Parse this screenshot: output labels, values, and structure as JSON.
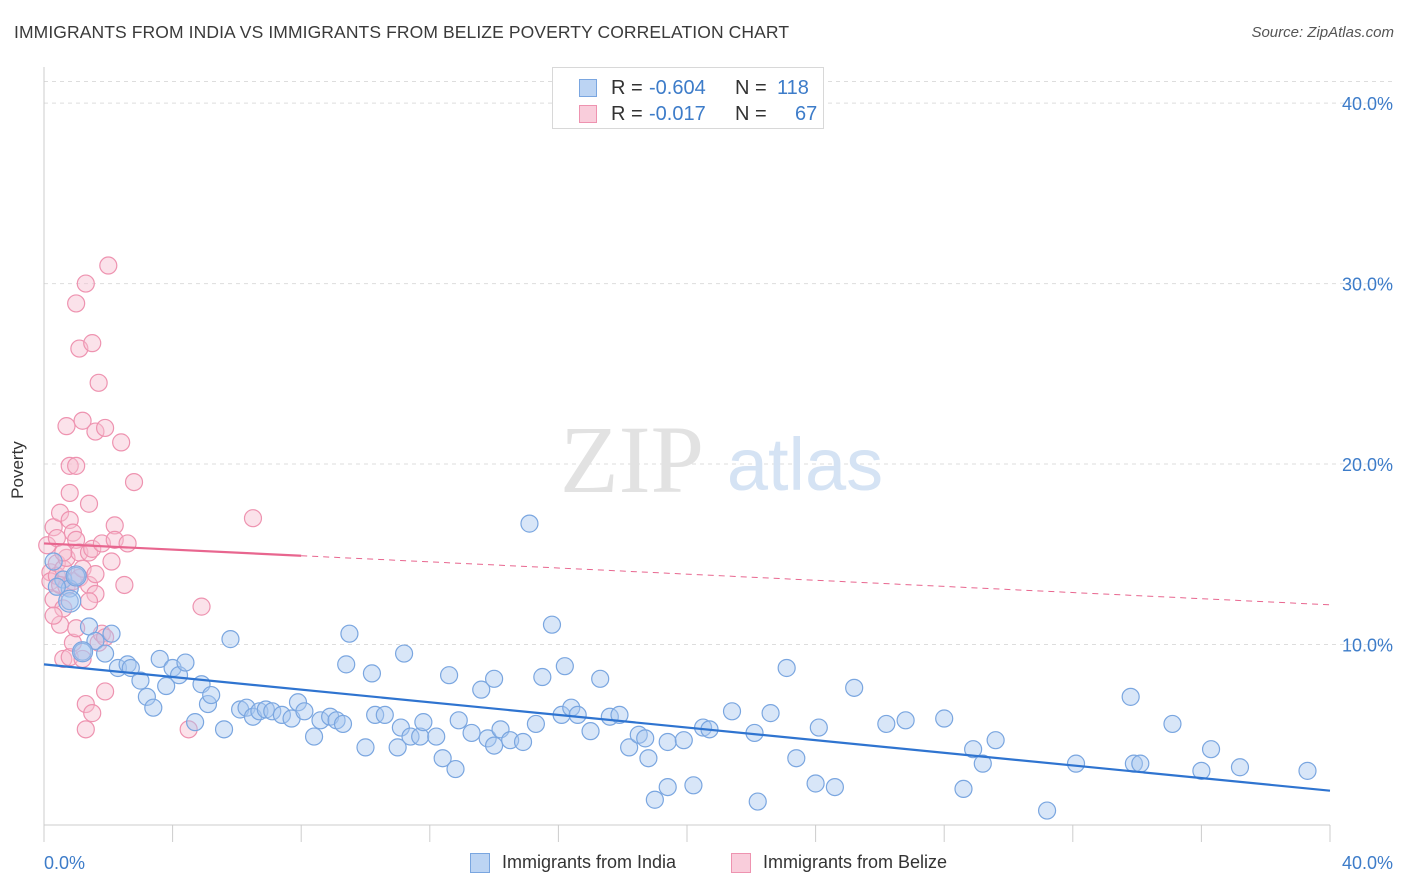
{
  "header": {
    "title": "IMMIGRANTS FROM INDIA VS IMMIGRANTS FROM BELIZE POVERTY CORRELATION CHART",
    "source": "Source: ZipAtlas.com"
  },
  "watermark": {
    "zip": "ZIP",
    "atlas": "atlas"
  },
  "legend": {
    "rows": [
      {
        "r_label": "R =",
        "r_value": "-0.604",
        "n_label": "N =",
        "n_value": "118"
      },
      {
        "r_label": "R =",
        "r_value": "-0.017",
        "n_label": "N =",
        "n_value": "67"
      }
    ]
  },
  "bottom_legend": {
    "india": "Immigrants from India",
    "belize": "Immigrants from Belize"
  },
  "colors": {
    "india_fill": "#a9c8f0",
    "india_stroke": "#7aa6e0",
    "india_line": "#2f74d0",
    "belize_fill": "#f6bfd0",
    "belize_stroke": "#ee93b0",
    "belize_line": "#e8668f",
    "tick_text": "#3d7cc9",
    "grid": "#dddddd"
  },
  "chart_data": {
    "type": "scatter",
    "title": "IMMIGRANTS FROM INDIA VS IMMIGRANTS FROM BELIZE POVERTY CORRELATION CHART",
    "ylabel": "Poverty",
    "xlabel": "",
    "xlim": [
      0,
      40
    ],
    "ylim": [
      0,
      42
    ],
    "x_tick_labels": [
      "0.0%",
      "40.0%"
    ],
    "y_ticks": [
      10,
      20,
      30,
      40
    ],
    "y_tick_labels": [
      "10.0%",
      "20.0%",
      "30.0%",
      "40.0%"
    ],
    "grid": "horizontal dashed",
    "legend_placement": "top-center",
    "series": [
      {
        "name": "Immigrants from India",
        "r": -0.604,
        "n": 118,
        "trend": {
          "x": [
            0,
            40
          ],
          "y": [
            8.9,
            1.9
          ],
          "style": "solid"
        },
        "points": [
          [
            0.3,
            14.6
          ],
          [
            0.6,
            13.6
          ],
          [
            0.8,
            13.1
          ],
          [
            0.8,
            12.4
          ],
          [
            1.0,
            13.8
          ],
          [
            1.2,
            9.6
          ],
          [
            1.4,
            11.0
          ],
          [
            1.6,
            10.2
          ],
          [
            1.9,
            9.5
          ],
          [
            2.1,
            10.6
          ],
          [
            2.3,
            8.7
          ],
          [
            2.6,
            8.9
          ],
          [
            2.7,
            8.7
          ],
          [
            3.0,
            8.0
          ],
          [
            3.2,
            7.1
          ],
          [
            3.4,
            6.5
          ],
          [
            3.6,
            9.2
          ],
          [
            3.8,
            7.7
          ],
          [
            4.0,
            8.7
          ],
          [
            4.2,
            8.3
          ],
          [
            4.4,
            9.0
          ],
          [
            4.7,
            5.7
          ],
          [
            4.9,
            7.8
          ],
          [
            5.1,
            6.7
          ],
          [
            5.2,
            7.2
          ],
          [
            5.6,
            5.3
          ],
          [
            5.8,
            10.3
          ],
          [
            6.1,
            6.4
          ],
          [
            6.3,
            6.5
          ],
          [
            6.5,
            6.0
          ],
          [
            6.7,
            6.3
          ],
          [
            6.9,
            6.4
          ],
          [
            7.1,
            6.3
          ],
          [
            7.4,
            6.1
          ],
          [
            7.7,
            5.9
          ],
          [
            7.9,
            6.8
          ],
          [
            8.1,
            6.3
          ],
          [
            8.4,
            4.9
          ],
          [
            8.6,
            5.8
          ],
          [
            8.9,
            6.0
          ],
          [
            9.1,
            5.8
          ],
          [
            9.3,
            5.6
          ],
          [
            9.4,
            8.9
          ],
          [
            9.5,
            10.6
          ],
          [
            10.0,
            4.3
          ],
          [
            10.2,
            8.4
          ],
          [
            10.3,
            6.1
          ],
          [
            10.6,
            6.1
          ],
          [
            11.0,
            4.3
          ],
          [
            11.1,
            5.4
          ],
          [
            11.2,
            9.5
          ],
          [
            11.4,
            4.9
          ],
          [
            11.7,
            4.9
          ],
          [
            11.8,
            5.7
          ],
          [
            12.2,
            4.9
          ],
          [
            12.4,
            3.7
          ],
          [
            12.6,
            8.3
          ],
          [
            12.8,
            3.1
          ],
          [
            12.9,
            5.8
          ],
          [
            13.3,
            5.1
          ],
          [
            13.6,
            7.5
          ],
          [
            13.8,
            4.8
          ],
          [
            14.0,
            4.4
          ],
          [
            14.0,
            8.1
          ],
          [
            14.2,
            5.3
          ],
          [
            14.5,
            4.7
          ],
          [
            14.9,
            4.6
          ],
          [
            15.1,
            16.7
          ],
          [
            15.3,
            5.6
          ],
          [
            15.5,
            8.2
          ],
          [
            15.8,
            11.1
          ],
          [
            16.1,
            6.1
          ],
          [
            16.2,
            8.8
          ],
          [
            16.4,
            6.5
          ],
          [
            16.6,
            6.1
          ],
          [
            17.0,
            5.2
          ],
          [
            17.3,
            8.1
          ],
          [
            17.6,
            6.0
          ],
          [
            17.9,
            6.1
          ],
          [
            18.2,
            4.3
          ],
          [
            18.5,
            5.0
          ],
          [
            18.7,
            4.8
          ],
          [
            18.8,
            3.7
          ],
          [
            19.0,
            1.4
          ],
          [
            19.4,
            4.6
          ],
          [
            19.4,
            2.1
          ],
          [
            19.9,
            4.7
          ],
          [
            20.2,
            2.2
          ],
          [
            20.5,
            5.4
          ],
          [
            20.7,
            5.3
          ],
          [
            21.4,
            6.3
          ],
          [
            22.1,
            5.1
          ],
          [
            22.2,
            1.3
          ],
          [
            22.6,
            6.2
          ],
          [
            23.1,
            8.7
          ],
          [
            23.4,
            3.7
          ],
          [
            24.0,
            2.3
          ],
          [
            24.1,
            5.4
          ],
          [
            24.6,
            2.1
          ],
          [
            25.2,
            7.6
          ],
          [
            26.2,
            5.6
          ],
          [
            26.8,
            5.8
          ],
          [
            28.0,
            5.9
          ],
          [
            28.6,
            2.0
          ],
          [
            28.9,
            4.2
          ],
          [
            29.2,
            3.4
          ],
          [
            29.6,
            4.7
          ],
          [
            31.2,
            0.8
          ],
          [
            32.1,
            3.4
          ],
          [
            33.8,
            7.1
          ],
          [
            33.9,
            3.4
          ],
          [
            34.1,
            3.4
          ],
          [
            35.1,
            5.6
          ],
          [
            36.0,
            3.0
          ],
          [
            36.3,
            4.2
          ],
          [
            37.2,
            3.2
          ],
          [
            39.3,
            3.0
          ],
          [
            0.4,
            13.2
          ]
        ]
      },
      {
        "name": "Immigrants from Belize",
        "r": -0.017,
        "n": 67,
        "trend": {
          "x": [
            0,
            40
          ],
          "y": [
            15.6,
            12.2
          ],
          "solid_until_x": 8.0
        },
        "points": [
          [
            0.1,
            15.5
          ],
          [
            0.2,
            14.0
          ],
          [
            0.2,
            13.5
          ],
          [
            0.3,
            16.5
          ],
          [
            0.3,
            12.5
          ],
          [
            0.4,
            15.9
          ],
          [
            0.4,
            14.5
          ],
          [
            0.4,
            13.8
          ],
          [
            0.5,
            17.3
          ],
          [
            0.5,
            11.1
          ],
          [
            0.5,
            13.3
          ],
          [
            0.6,
            14.2
          ],
          [
            0.6,
            12.0
          ],
          [
            0.6,
            9.2
          ],
          [
            0.7,
            22.1
          ],
          [
            0.7,
            14.8
          ],
          [
            0.7,
            13.2
          ],
          [
            0.8,
            18.4
          ],
          [
            0.8,
            16.9
          ],
          [
            0.8,
            9.3
          ],
          [
            0.8,
            19.9
          ],
          [
            0.9,
            16.2
          ],
          [
            0.9,
            13.5
          ],
          [
            0.9,
            10.1
          ],
          [
            1.0,
            19.9
          ],
          [
            1.0,
            15.8
          ],
          [
            1.0,
            10.9
          ],
          [
            1.0,
            28.9
          ],
          [
            1.1,
            15.1
          ],
          [
            1.1,
            26.4
          ],
          [
            1.1,
            13.7
          ],
          [
            1.2,
            22.4
          ],
          [
            1.2,
            14.2
          ],
          [
            1.3,
            6.7
          ],
          [
            1.3,
            5.3
          ],
          [
            1.3,
            30.0
          ],
          [
            1.4,
            17.8
          ],
          [
            1.4,
            13.3
          ],
          [
            1.4,
            15.1
          ],
          [
            1.5,
            26.7
          ],
          [
            1.5,
            15.3
          ],
          [
            1.5,
            6.2
          ],
          [
            1.6,
            21.8
          ],
          [
            1.6,
            13.9
          ],
          [
            1.6,
            12.8
          ],
          [
            1.7,
            24.5
          ],
          [
            1.7,
            10.1
          ],
          [
            1.8,
            10.6
          ],
          [
            1.8,
            15.6
          ],
          [
            1.9,
            22.0
          ],
          [
            1.9,
            10.4
          ],
          [
            1.9,
            7.4
          ],
          [
            2.0,
            31.0
          ],
          [
            2.1,
            14.6
          ],
          [
            2.2,
            16.6
          ],
          [
            2.2,
            15.8
          ],
          [
            2.4,
            21.2
          ],
          [
            2.5,
            13.3
          ],
          [
            2.6,
            15.6
          ],
          [
            2.8,
            19.0
          ],
          [
            4.5,
            5.3
          ],
          [
            4.9,
            12.1
          ],
          [
            6.5,
            17.0
          ],
          [
            0.3,
            11.6
          ],
          [
            0.6,
            15.1
          ],
          [
            1.2,
            9.2
          ],
          [
            1.4,
            12.4
          ]
        ]
      }
    ]
  }
}
